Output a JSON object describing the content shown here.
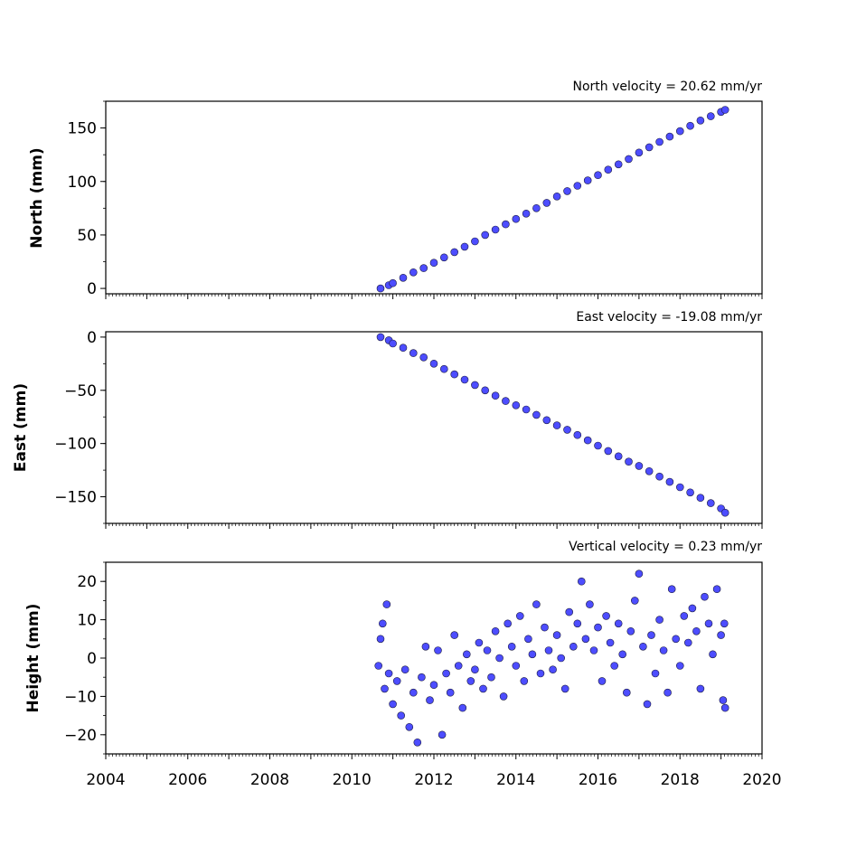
{
  "chart_data": [
    {
      "type": "scatter",
      "title": "North velocity = 20.62 mm/yr",
      "ylabel": "North (mm)",
      "xlabel": "",
      "xlim": [
        2004,
        2020
      ],
      "ylim": [
        -5,
        175
      ],
      "yticks": [
        0,
        50,
        100,
        150
      ],
      "ytick_labels": [
        "0",
        "50",
        "100",
        "150"
      ],
      "xtick_labels_shown": false,
      "marker_color": "#4d4dff",
      "edge_color": "#1a1a40",
      "series": [
        {
          "x": [
            2010.7,
            2010.9,
            2011.0,
            2011.25,
            2011.5,
            2011.75,
            2012.0,
            2012.25,
            2012.5,
            2012.75,
            2013.0,
            2013.25,
            2013.5,
            2013.75,
            2014.0,
            2014.25,
            2014.5,
            2014.75,
            2015.0,
            2015.25,
            2015.5,
            2015.75,
            2016.0,
            2016.25,
            2016.5,
            2016.75,
            2017.0,
            2017.25,
            2017.5,
            2017.75,
            2018.0,
            2018.25,
            2018.5,
            2018.75,
            2019.0,
            2019.1
          ],
          "y": [
            0,
            3,
            5,
            10,
            15,
            19,
            24,
            29,
            34,
            39,
            44,
            50,
            55,
            60,
            65,
            70,
            75,
            80,
            86,
            91,
            96,
            101,
            106,
            111,
            116,
            121,
            127,
            132,
            137,
            142,
            147,
            152,
            157,
            161,
            165,
            167
          ]
        }
      ]
    },
    {
      "type": "scatter",
      "title": "East velocity = -19.08 mm/yr",
      "ylabel": "East (mm)",
      "xlabel": "",
      "xlim": [
        2004,
        2020
      ],
      "ylim": [
        -175,
        5
      ],
      "yticks": [
        0,
        -50,
        -100,
        -150
      ],
      "ytick_labels": [
        "0",
        "−50",
        "−100",
        "−150"
      ],
      "xtick_labels_shown": false,
      "marker_color": "#4d4dff",
      "edge_color": "#1a1a40",
      "series": [
        {
          "x": [
            2010.7,
            2010.9,
            2011.0,
            2011.25,
            2011.5,
            2011.75,
            2012.0,
            2012.25,
            2012.5,
            2012.75,
            2013.0,
            2013.25,
            2013.5,
            2013.75,
            2014.0,
            2014.25,
            2014.5,
            2014.75,
            2015.0,
            2015.25,
            2015.5,
            2015.75,
            2016.0,
            2016.25,
            2016.5,
            2016.75,
            2017.0,
            2017.25,
            2017.5,
            2017.75,
            2018.0,
            2018.25,
            2018.5,
            2018.75,
            2019.0,
            2019.1
          ],
          "y": [
            0,
            -3,
            -6,
            -10,
            -15,
            -19,
            -25,
            -30,
            -35,
            -40,
            -45,
            -50,
            -55,
            -60,
            -64,
            -68,
            -73,
            -78,
            -83,
            -87,
            -92,
            -97,
            -102,
            -107,
            -112,
            -117,
            -121,
            -126,
            -131,
            -136,
            -141,
            -146,
            -151,
            -156,
            -161,
            -165
          ]
        }
      ]
    },
    {
      "type": "scatter",
      "title": "Vertical velocity = 0.23 mm/yr",
      "ylabel": "Height (mm)",
      "xlabel": "",
      "xlim": [
        2004,
        2020
      ],
      "ylim": [
        -25,
        25
      ],
      "yticks": [
        20,
        10,
        0,
        -10,
        -20
      ],
      "ytick_labels": [
        "20",
        "10",
        "0",
        "−10",
        "−20"
      ],
      "xticks": [
        2004,
        2006,
        2008,
        2010,
        2012,
        2014,
        2016,
        2018,
        2020
      ],
      "xtick_labels": [
        "2004",
        "2006",
        "2008",
        "2010",
        "2012",
        "2014",
        "2016",
        "2018",
        "2020"
      ],
      "marker_color": "#4d4dff",
      "edge_color": "#1a1a40",
      "series": [
        {
          "x": [
            2010.65,
            2010.7,
            2010.75,
            2010.8,
            2010.85,
            2010.9,
            2011.0,
            2011.1,
            2011.2,
            2011.3,
            2011.4,
            2011.5,
            2011.6,
            2011.7,
            2011.8,
            2011.9,
            2012.0,
            2012.1,
            2012.2,
            2012.3,
            2012.4,
            2012.5,
            2012.6,
            2012.7,
            2012.8,
            2012.9,
            2013.0,
            2013.1,
            2013.2,
            2013.3,
            2013.4,
            2013.5,
            2013.6,
            2013.7,
            2013.8,
            2013.9,
            2014.0,
            2014.1,
            2014.2,
            2014.3,
            2014.4,
            2014.5,
            2014.6,
            2014.7,
            2014.8,
            2014.9,
            2015.0,
            2015.1,
            2015.2,
            2015.3,
            2015.4,
            2015.5,
            2015.6,
            2015.7,
            2015.8,
            2015.9,
            2016.0,
            2016.1,
            2016.2,
            2016.3,
            2016.4,
            2016.5,
            2016.6,
            2016.7,
            2016.8,
            2016.9,
            2017.0,
            2017.1,
            2017.2,
            2017.3,
            2017.4,
            2017.5,
            2017.6,
            2017.7,
            2017.8,
            2017.9,
            2018.0,
            2018.1,
            2018.2,
            2018.3,
            2018.4,
            2018.5,
            2018.6,
            2018.7,
            2018.8,
            2018.9,
            2019.0,
            2019.05,
            2019.08,
            2019.1
          ],
          "y": [
            -2,
            5,
            9,
            -8,
            14,
            -4,
            -12,
            -6,
            -15,
            -3,
            -18,
            -9,
            -22,
            -5,
            3,
            -11,
            -7,
            2,
            -20,
            -4,
            -9,
            6,
            -2,
            -13,
            1,
            -6,
            -3,
            4,
            -8,
            2,
            -5,
            7,
            0,
            -10,
            9,
            3,
            -2,
            11,
            -6,
            5,
            1,
            14,
            -4,
            8,
            2,
            -3,
            6,
            0,
            -8,
            12,
            3,
            9,
            20,
            5,
            14,
            2,
            8,
            -6,
            11,
            4,
            -2,
            9,
            1,
            -9,
            7,
            15,
            22,
            3,
            -12,
            6,
            -4,
            10,
            2,
            -9,
            18,
            5,
            -2,
            11,
            4,
            13,
            7,
            -8,
            16,
            9,
            1,
            18,
            6,
            -11,
            9,
            -13
          ]
        }
      ]
    }
  ]
}
